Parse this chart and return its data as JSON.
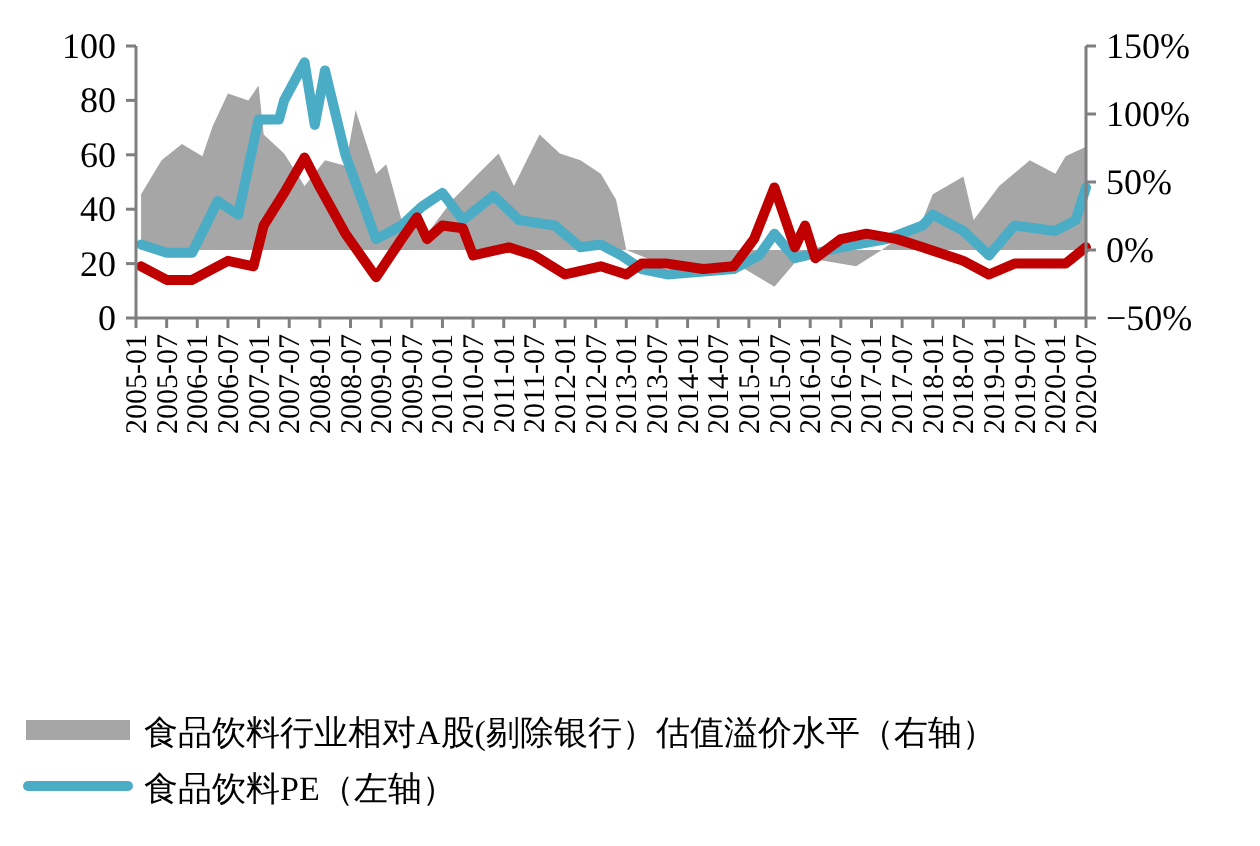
{
  "chart_data": {
    "type": "line",
    "xlim": [
      "2005-01",
      "2020-07"
    ],
    "xticks": [
      "2005-01",
      "2005-07",
      "2006-01",
      "2006-07",
      "2007-01",
      "2007-07",
      "2008-01",
      "2008-07",
      "2009-01",
      "2009-07",
      "2010-01",
      "2010-07",
      "2011-01",
      "2011-07",
      "2012-01",
      "2012-07",
      "2013-01",
      "2013-07",
      "2014-01",
      "2014-07",
      "2015-01",
      "2015-07",
      "2016-01",
      "2016-07",
      "2017-01",
      "2017-07",
      "2018-01",
      "2018-07",
      "2019-01",
      "2019-07",
      "2020-01",
      "2020-07"
    ],
    "ylim": [
      0,
      100
    ],
    "yticks": [
      0,
      20,
      40,
      60,
      80,
      100
    ],
    "y2lim": [
      -50,
      150
    ],
    "y2ticks": [
      {
        "value": -50,
        "label": "−50%"
      },
      {
        "value": 0,
        "label": "0%"
      },
      {
        "value": 50,
        "label": "50%"
      },
      {
        "value": 100,
        "label": "100%"
      },
      {
        "value": 150,
        "label": "150%"
      }
    ],
    "legend": "bottom",
    "series": [
      {
        "type": "area",
        "axis": "y2",
        "name": "食品饮料行业相对A股(剔除银行）估值溢价水平（右轴）",
        "color": "#a6a6a6",
        "x": [
          "2005-02",
          "2005-06",
          "2005-10",
          "2006-02",
          "2006-04",
          "2006-07",
          "2006-11",
          "2007-01",
          "2007-02",
          "2007-06",
          "2007-10",
          "2008-02",
          "2008-06",
          "2008-08",
          "2008-12",
          "2009-02",
          "2009-05",
          "2009-10",
          "2010-03",
          "2010-08",
          "2010-12",
          "2011-03",
          "2011-08",
          "2011-12",
          "2012-04",
          "2012-08",
          "2012-11",
          "2013-01",
          "2013-09",
          "2014-10",
          "2015-06",
          "2015-11",
          "2016-10",
          "2017-03",
          "2017-11",
          "2018-01",
          "2018-07",
          "2018-09",
          "2019-02",
          "2019-08",
          "2020-01",
          "2020-03",
          "2020-07"
        ],
        "values": [
          41,
          66,
          78,
          69,
          91,
          115,
          110,
          121,
          85,
          71,
          47,
          66,
          62,
          103,
          56,
          63,
          22,
          12,
          37,
          56,
          71,
          47,
          85,
          71,
          66,
          56,
          37,
          0,
          -12,
          -9,
          -27,
          -5,
          -12,
          0,
          22,
          41,
          54,
          22,
          47,
          66,
          56,
          69,
          76
        ]
      },
      {
        "type": "line",
        "name": "食品饮料PE（左轴）",
        "color": "#4bacc6",
        "x": [
          "2005-02",
          "2005-07",
          "2005-12",
          "2006-05",
          "2006-09",
          "2007-01",
          "2007-05",
          "2007-06",
          "2007-10",
          "2007-12",
          "2008-02",
          "2008-06",
          "2008-12",
          "2009-05",
          "2009-09",
          "2010-01",
          "2010-05",
          "2010-11",
          "2011-04",
          "2011-11",
          "2012-04",
          "2012-08",
          "2012-12",
          "2013-04",
          "2013-09",
          "2014-10",
          "2015-03",
          "2015-06",
          "2015-10",
          "2016-07",
          "2017-04",
          "2017-11",
          "2018-01",
          "2018-07",
          "2018-12",
          "2019-05",
          "2020-01",
          "2020-05",
          "2020-07"
        ],
        "values": [
          27,
          24,
          24,
          43,
          38,
          73,
          73,
          80,
          94,
          71,
          91,
          60,
          29,
          34,
          41,
          46,
          36,
          45,
          36,
          34,
          26,
          27,
          23,
          18,
          16,
          18,
          23,
          31,
          22,
          26,
          29,
          34,
          38,
          32,
          23,
          34,
          32,
          36,
          48
        ]
      },
      {
        "type": "line",
        "color": "#c00000",
        "x": [
          "2005-02",
          "2005-07",
          "2005-12",
          "2006-07",
          "2006-12",
          "2007-02",
          "2007-06",
          "2007-10",
          "2008-01",
          "2008-06",
          "2008-12",
          "2009-05",
          "2009-08",
          "2009-10",
          "2010-01",
          "2010-05",
          "2010-07",
          "2011-02",
          "2011-07",
          "2012-01",
          "2012-08",
          "2013-01",
          "2013-04",
          "2013-09",
          "2014-04",
          "2014-10",
          "2015-02",
          "2015-06",
          "2015-10",
          "2015-12",
          "2016-02",
          "2016-07",
          "2016-12",
          "2017-06",
          "2017-11",
          "2018-07",
          "2018-12",
          "2019-05",
          "2020-03",
          "2020-07"
        ],
        "values": [
          19,
          14,
          14,
          21,
          19,
          34,
          46,
          59,
          48,
          31,
          15,
          29,
          37,
          29,
          34,
          33,
          23,
          26,
          23,
          16,
          19,
          16,
          20,
          20,
          18,
          19,
          29,
          48,
          26,
          34,
          22,
          29,
          31,
          29,
          26,
          21,
          16,
          20,
          20,
          26
        ]
      }
    ]
  }
}
